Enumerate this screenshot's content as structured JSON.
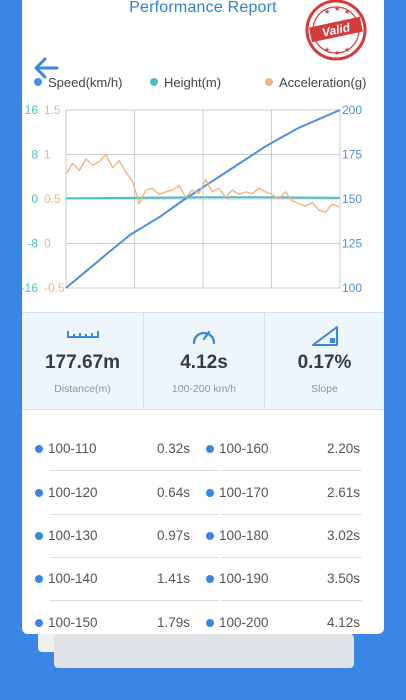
{
  "header": {
    "title": "Performance Report",
    "stamp_text": "Valid"
  },
  "legend": [
    {
      "label": "Speed(km/h)",
      "color": "#4a90e2"
    },
    {
      "label": "Height(m)",
      "color": "#4dbfbf"
    },
    {
      "label": "Acceleration(g)",
      "color": "#f0b483"
    }
  ],
  "chart_data": {
    "type": "line",
    "axes": {
      "height_ticks": [
        "16",
        "8",
        "0",
        "-8",
        "-16"
      ],
      "accel_ticks": [
        "1.5",
        "1",
        "0.5",
        "0",
        "-0.5"
      ],
      "speed_ticks": [
        "200",
        "175",
        "150",
        "125",
        "100"
      ],
      "speed_range": [
        100,
        200
      ],
      "height_range": [
        -16,
        16
      ],
      "accel_range": [
        -0.5,
        1.5
      ],
      "grid": true
    },
    "series": [
      {
        "name": "Speed(km/h)",
        "color": "#4a90e2",
        "x": [
          0,
          0.32,
          0.64,
          0.97,
          1.41,
          1.79,
          2.2,
          2.61,
          3.02,
          3.5,
          4.12
        ],
        "y": [
          100,
          110,
          120,
          130,
          140,
          150,
          160,
          170,
          180,
          190,
          200
        ]
      },
      {
        "name": "Height(m)",
        "color": "#4dbfbf",
        "x": [
          0,
          1,
          2,
          3,
          4.12
        ],
        "y": [
          0.1,
          0.2,
          0.3,
          0.3,
          0.2
        ]
      },
      {
        "name": "Acceleration(g)",
        "color": "#f0b483",
        "x": [
          0,
          0.1,
          0.2,
          0.3,
          0.4,
          0.5,
          0.6,
          0.7,
          0.8,
          0.9,
          1.0,
          1.1,
          1.2,
          1.3,
          1.4,
          1.5,
          1.6,
          1.7,
          1.8,
          1.9,
          2.0,
          2.1,
          2.2,
          2.3,
          2.4,
          2.5,
          2.6,
          2.7,
          2.8,
          2.9,
          3.0,
          3.1,
          3.2,
          3.3,
          3.4,
          3.5,
          3.6,
          3.7,
          3.8,
          3.9,
          4.0,
          4.12
        ],
        "y": [
          0.78,
          0.9,
          0.82,
          0.95,
          0.88,
          0.92,
          1.0,
          0.85,
          0.93,
          0.8,
          0.7,
          0.45,
          0.6,
          0.62,
          0.55,
          0.58,
          0.6,
          0.65,
          0.52,
          0.6,
          0.56,
          0.72,
          0.58,
          0.62,
          0.52,
          0.6,
          0.55,
          0.58,
          0.56,
          0.62,
          0.58,
          0.55,
          0.5,
          0.58,
          0.48,
          0.45,
          0.42,
          0.46,
          0.38,
          0.35,
          0.44,
          0.41
        ]
      }
    ]
  },
  "stats": [
    {
      "icon": "ruler-icon",
      "value": "177.67m",
      "label": "Distance(m)"
    },
    {
      "icon": "speedometer-icon",
      "value": "4.12s",
      "label": "100-200 km/h"
    },
    {
      "icon": "slope-icon",
      "value": "0.17%",
      "label": "Slope"
    }
  ],
  "splits": [
    {
      "left_name": "100-110",
      "left_time": "0.32s",
      "right_name": "100-160",
      "right_time": "2.20s"
    },
    {
      "left_name": "100-120",
      "left_time": "0.64s",
      "right_name": "100-170",
      "right_time": "2.61s"
    },
    {
      "left_name": "100-130",
      "left_time": "0.97s",
      "right_name": "100-180",
      "right_time": "3.02s"
    },
    {
      "left_name": "100-140",
      "left_time": "1.41s",
      "right_name": "100-190",
      "right_time": "3.50s"
    },
    {
      "left_name": "100-150",
      "left_time": "1.79s",
      "right_name": "100-200",
      "right_time": "4.12s"
    }
  ]
}
